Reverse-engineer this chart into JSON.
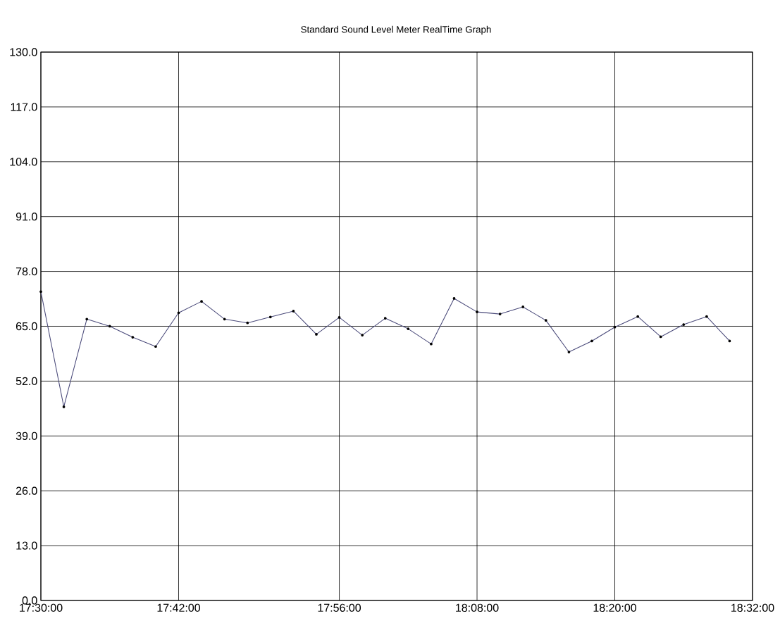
{
  "chart_data": {
    "type": "line",
    "title": "Standard Sound Level Meter RealTime Graph",
    "x": [
      17.5,
      17.5333,
      17.5667,
      17.6,
      17.6333,
      17.6667,
      17.7,
      17.7333,
      17.7667,
      17.8,
      17.8333,
      17.8667,
      17.9,
      17.9333,
      17.9667,
      18.0,
      18.0333,
      18.0667,
      18.1,
      18.1333,
      18.1667,
      18.2,
      18.2333,
      18.2667,
      18.3,
      18.3333,
      18.3667,
      18.4,
      18.4333,
      18.4667,
      18.5
    ],
    "series": [
      {
        "color": "#4a4a7a",
        "values": [
          73.2,
          45.9,
          66.7,
          65.0,
          62.4,
          60.2,
          68.2,
          70.9,
          66.7,
          65.8,
          67.2,
          68.6,
          63.1,
          67.1,
          62.9,
          66.9,
          64.4,
          60.8,
          71.6,
          68.4,
          67.9,
          69.6,
          66.4,
          58.9,
          61.5,
          64.8,
          67.3,
          62.5,
          65.4,
          67.3,
          61.5
        ]
      }
    ],
    "xlim": [
      17.5,
      18.5333
    ],
    "xticks": [
      {
        "value": 17.5,
        "label": "17:30:00"
      },
      {
        "value": 17.7,
        "label": "17:42:00"
      },
      {
        "value": 17.9333,
        "label": "17:56:00"
      },
      {
        "value": 18.1333,
        "label": "18:08:00"
      },
      {
        "value": 18.3333,
        "label": "18:20:00"
      },
      {
        "value": 18.5333,
        "label": "18:32:00"
      }
    ],
    "ylim": [
      0,
      130
    ],
    "yticks": [
      {
        "value": 0,
        "label": "0.0"
      },
      {
        "value": 13,
        "label": "13.0"
      },
      {
        "value": 26,
        "label": "26.0"
      },
      {
        "value": 39,
        "label": "39.0"
      },
      {
        "value": 52,
        "label": "52.0"
      },
      {
        "value": 65,
        "label": "65.0"
      },
      {
        "value": 78,
        "label": "78.0"
      },
      {
        "value": 91,
        "label": "91.0"
      },
      {
        "value": 104,
        "label": "104.0"
      },
      {
        "value": 117,
        "label": "117.0"
      },
      {
        "value": 130,
        "label": "130.0"
      }
    ],
    "grid": true,
    "marker": "circle",
    "line_style": "solid"
  }
}
